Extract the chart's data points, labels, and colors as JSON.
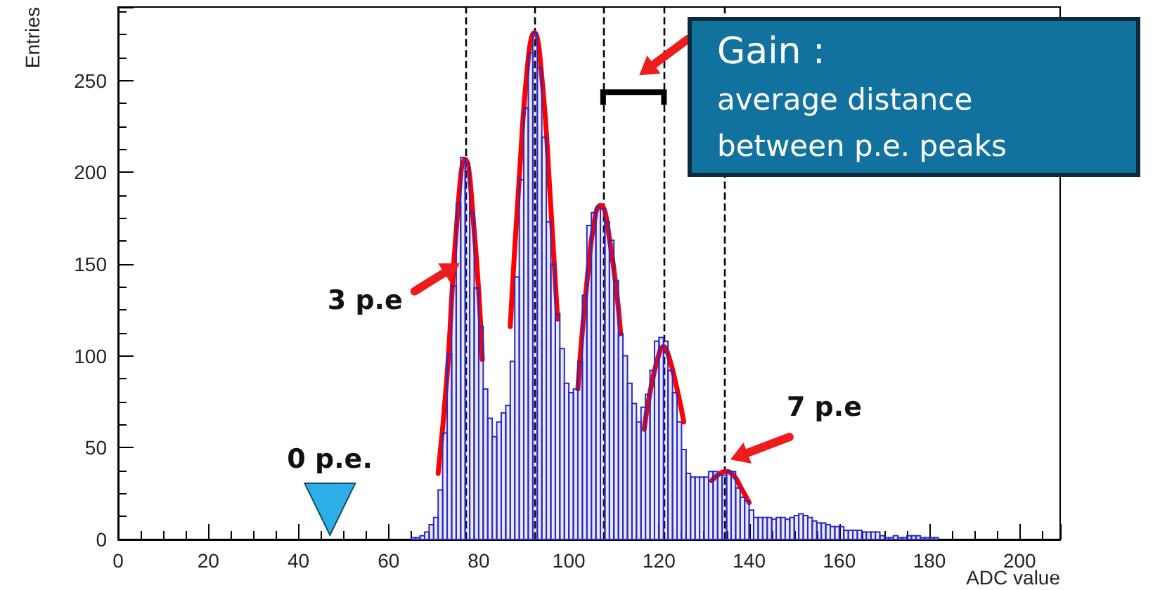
{
  "chart_data": {
    "type": "histogram",
    "xlabel": "ADC value",
    "ylabel": "Entries",
    "color": "#2a2ac0",
    "bins": [
      65,
      66,
      67,
      68,
      69,
      70,
      71,
      72,
      73,
      74,
      75,
      76,
      77,
      78,
      79,
      80,
      81,
      82,
      83,
      84,
      85,
      86,
      87,
      88,
      89,
      90,
      91,
      92,
      93,
      94,
      95,
      96,
      97,
      98,
      99,
      100,
      101,
      102,
      103,
      104,
      105,
      106,
      107,
      108,
      109,
      110,
      111,
      112,
      113,
      114,
      115,
      116,
      117,
      118,
      119,
      120,
      121,
      122,
      123,
      124,
      125,
      126,
      127,
      128,
      129,
      130,
      131,
      132,
      133,
      134,
      135,
      136,
      137,
      138,
      139,
      140,
      141,
      142,
      143,
      144,
      145,
      146,
      147,
      148,
      149,
      150,
      151,
      152,
      153,
      154,
      155,
      156,
      157,
      158,
      159,
      160,
      161,
      162,
      163,
      164,
      165,
      166,
      167,
      168,
      169,
      170,
      171,
      172,
      173,
      174,
      175,
      176,
      177,
      178,
      179,
      180,
      181,
      182
    ],
    "values": [
      1,
      1,
      2,
      4,
      8,
      12,
      27,
      58,
      101,
      138,
      183,
      208,
      205,
      178,
      137,
      116,
      82,
      66,
      56,
      64,
      69,
      73,
      97,
      143,
      196,
      235,
      265,
      276,
      257,
      219,
      173,
      150,
      123,
      104,
      85,
      80,
      82,
      97,
      133,
      171,
      178,
      181,
      180,
      173,
      163,
      141,
      112,
      100,
      85,
      74,
      64,
      72,
      79,
      92,
      108,
      110,
      108,
      92,
      80,
      64,
      49,
      36,
      34,
      34,
      34,
      34,
      37,
      37,
      35,
      35,
      37,
      37,
      28,
      23,
      21,
      16,
      12,
      12,
      12,
      12,
      11,
      12,
      12,
      11,
      12,
      13,
      14,
      13,
      12,
      10,
      9,
      9,
      8,
      7,
      7,
      7,
      5,
      5,
      5,
      5,
      4,
      4,
      4,
      4,
      2,
      1,
      1,
      2,
      1,
      1,
      2,
      2,
      2,
      1,
      1,
      1,
      1
    ],
    "series": [
      {
        "type": "line",
        "color": "#ff0000",
        "x": [
          71,
          73,
          75,
          77,
          79,
          80.8
        ],
        "values": [
          36,
          90,
          168,
          207,
          168,
          98
        ]
      },
      {
        "type": "line",
        "color": "#ff0000",
        "x": [
          87,
          89,
          91,
          92.3,
          94,
          96,
          97.5
        ],
        "values": [
          116,
          197,
          262,
          276,
          252,
          181,
          120
        ]
      },
      {
        "type": "line",
        "color": "#ff0000",
        "x": [
          102,
          104,
          106,
          107,
          109,
          111.5
        ],
        "values": [
          82,
          140,
          178,
          182,
          164,
          112
        ]
      },
      {
        "type": "line",
        "color": "#ff0000",
        "x": [
          116.7,
          118,
          120,
          121,
          122,
          124,
          125.5
        ],
        "values": [
          60,
          80,
          101,
          105,
          101,
          82,
          64
        ]
      },
      {
        "type": "line",
        "color": "#ff0000",
        "x": [
          131.7,
          133,
          134.8,
          136.5,
          138,
          140
        ],
        "values": [
          32,
          35,
          37,
          35,
          29,
          20
        ]
      }
    ],
    "xlim": [
      0,
      209
    ],
    "xticks": [
      0,
      20,
      40,
      60,
      80,
      100,
      120,
      140,
      160,
      180,
      200
    ],
    "ylim": [
      0,
      290
    ],
    "yticks": [
      0,
      50,
      100,
      150,
      200,
      250
    ],
    "ref_lines": [
      {
        "axis": "x",
        "value": 77.1,
        "color": "#000000",
        "line_style": "dashed"
      },
      {
        "axis": "x",
        "value": 92.4,
        "color": "#000000",
        "line_style": "dashed"
      },
      {
        "axis": "x",
        "value": 107.6,
        "color": "#000000",
        "line_style": "dashed"
      },
      {
        "axis": "x",
        "value": 121.1,
        "color": "#000000",
        "line_style": "dashed"
      },
      {
        "axis": "x",
        "value": 134.5,
        "color": "#000000",
        "line_style": "dashed"
      }
    ],
    "annotations": [
      {
        "text": "3 p.e",
        "x": 76.7,
        "y": 152
      },
      {
        "text": "7 p.e",
        "x": 134.9,
        "y": 42
      },
      "0 p.e.",
      "Gain :",
      "average distance between p.e. peaks"
    ],
    "grid": false
  }
}
